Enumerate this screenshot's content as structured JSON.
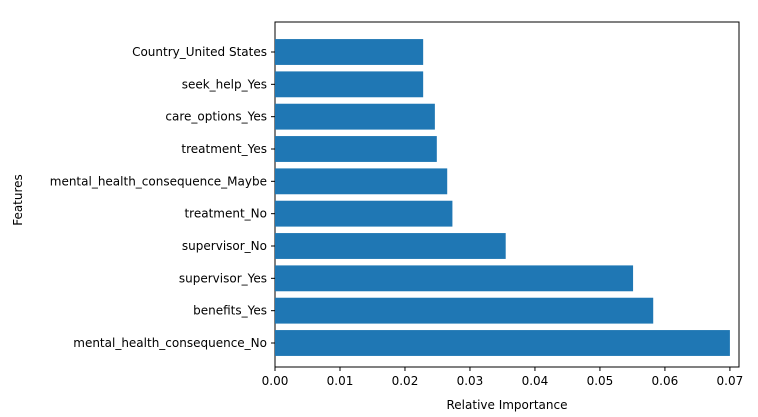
{
  "chart_data": {
    "type": "bar",
    "orientation": "horizontal",
    "categories": [
      "mental_health_consequence_No",
      "benefits_Yes",
      "supervisor_Yes",
      "supervisor_No",
      "treatment_No",
      "mental_health_consequence_Maybe",
      "treatment_Yes",
      "care_options_Yes",
      "seek_help_Yes",
      "Country_United States"
    ],
    "values": [
      0.07,
      0.0582,
      0.0551,
      0.0355,
      0.0273,
      0.0265,
      0.0249,
      0.0246,
      0.0228,
      0.0228
    ],
    "xlabel": "Relative Importance",
    "ylabel": "Features",
    "xlim": [
      0,
      0.0714
    ],
    "xticks": [
      "0.00",
      "0.01",
      "0.02",
      "0.03",
      "0.04",
      "0.05",
      "0.06",
      "0.07"
    ],
    "grid": false,
    "bar_color": "#1f77b4"
  }
}
